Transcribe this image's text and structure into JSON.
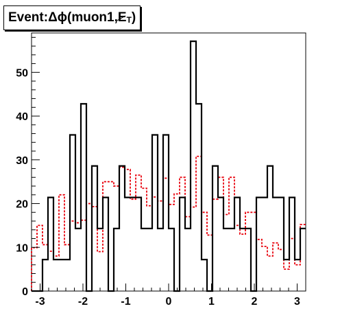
{
  "chart_data": {
    "type": "histogram",
    "title": {
      "prefix": "Event: ",
      "delta": "Δ",
      "phi": "ϕ",
      "paren_open": "(",
      "object": "muon1,",
      "met_letter": "E",
      "met_sub": "T",
      "paren_close": ")"
    },
    "xlim": [
      -3.2,
      3.2
    ],
    "ylim": [
      0,
      59
    ],
    "xticks": [
      -3,
      -2,
      -1,
      0,
      1,
      2,
      3
    ],
    "yticks": [
      0,
      10,
      20,
      30,
      40,
      50
    ],
    "xlabel": "",
    "ylabel": "",
    "grid": false,
    "bin_edges": [
      -3.2,
      -3.072,
      -2.944,
      -2.816,
      -2.688,
      -2.56,
      -2.432,
      -2.304,
      -2.176,
      -2.048,
      -1.92,
      -1.792,
      -1.664,
      -1.536,
      -1.408,
      -1.28,
      -1.152,
      -1.024,
      -0.896,
      -0.768,
      -0.64,
      -0.512,
      -0.384,
      -0.256,
      -0.128,
      0.0,
      0.128,
      0.256,
      0.384,
      0.512,
      0.64,
      0.768,
      0.896,
      1.024,
      1.152,
      1.28,
      1.408,
      1.536,
      1.664,
      1.792,
      1.92,
      2.048,
      2.176,
      2.304,
      2.432,
      2.56,
      2.688,
      2.816,
      2.944,
      3.072,
      3.2
    ],
    "series": [
      {
        "style": "solid",
        "color": "#000000",
        "values": [
          0,
          0,
          7.2,
          21.4,
          7.2,
          7.2,
          7.2,
          35.7,
          14.3,
          42.8,
          0,
          28.6,
          14.3,
          21.4,
          0,
          14.3,
          28.6,
          21.4,
          21.4,
          21.4,
          14.3,
          14.3,
          35.7,
          14.3,
          35.7,
          14.3,
          0,
          21.4,
          14.3,
          57.1,
          42.8,
          7.2,
          0,
          28.6,
          21.4,
          14.3,
          14.3,
          21.4,
          14.3,
          14.3,
          0,
          21.4,
          21.4,
          28.6,
          21.4,
          21.4,
          7.2,
          21.4,
          7.2,
          14.3
        ]
      },
      {
        "style": "dashed",
        "color": "#e8000b",
        "values": [
          9.9,
          15.0,
          10.6,
          9.1,
          8.0,
          22.0,
          10.6,
          16.0,
          15.6,
          16.2,
          20.0,
          19.3,
          9.0,
          25.0,
          25.0,
          24.0,
          28.3,
          27.8,
          21.0,
          26.5,
          23.5,
          19.5,
          21.5,
          20.6,
          25.8,
          19.8,
          22.2,
          26.0,
          17.0,
          19.2,
          30.8,
          18.0,
          12.8,
          21.0,
          26.0,
          17.5,
          26.0,
          15.0,
          13.0,
          18.0,
          18.0,
          11.8,
          10.2,
          8.0,
          11.0,
          9.5,
          5.0,
          12.0,
          6.0,
          15.2
        ]
      }
    ]
  }
}
